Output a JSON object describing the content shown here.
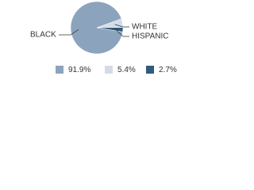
{
  "chart_data": {
    "type": "pie",
    "categories": [
      "BLACK",
      "WHITE",
      "HISPANIC"
    ],
    "values": [
      91.9,
      5.4,
      2.7
    ],
    "value_labels": [
      "91.9%",
      "5.4%",
      "2.7%"
    ],
    "colors": [
      "#8ca3bd",
      "#d3dce6",
      "#2f5b7c"
    ]
  }
}
